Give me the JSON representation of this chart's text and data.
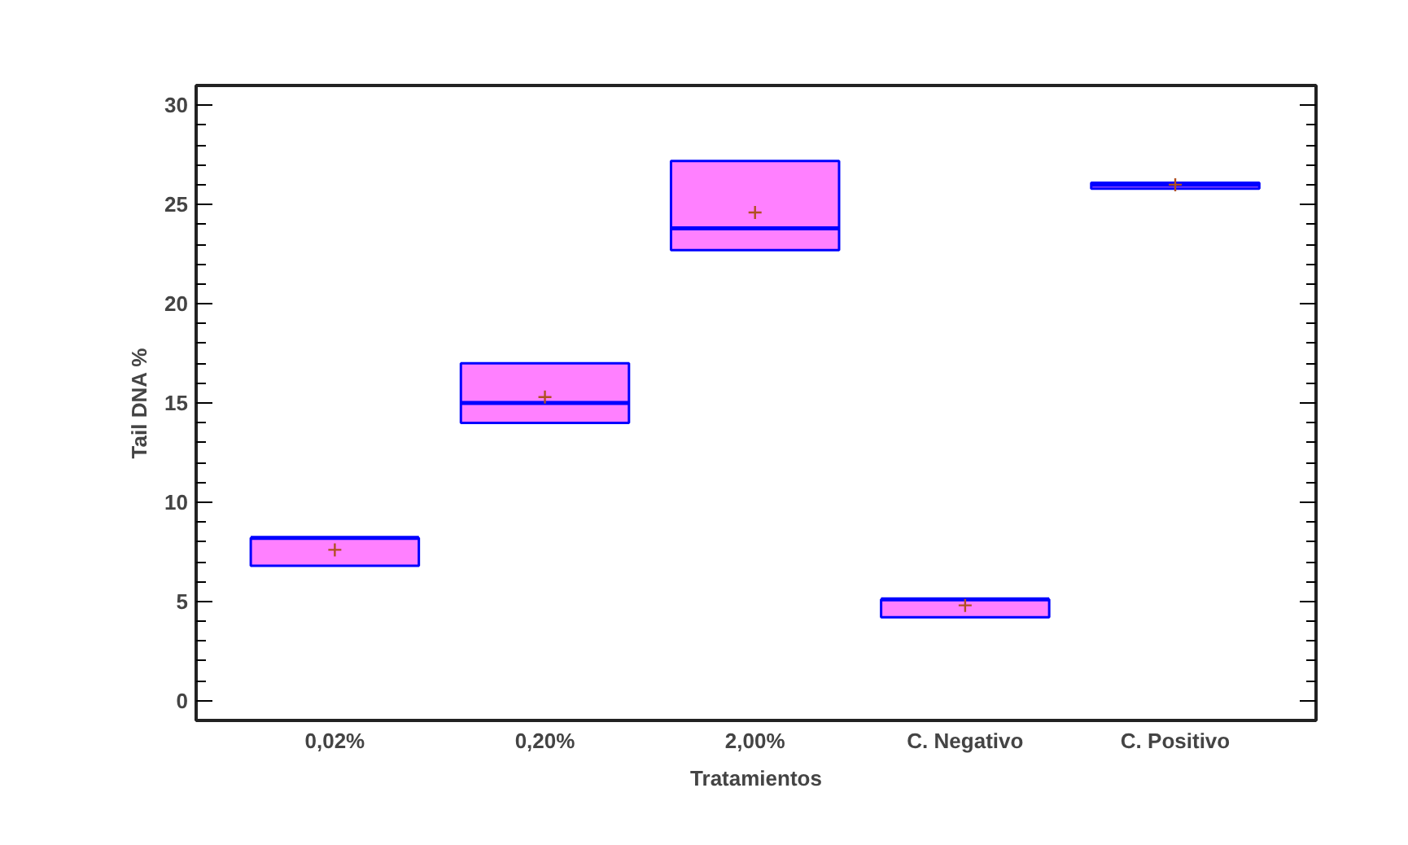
{
  "chart_data": {
    "type": "box",
    "xlabel": "Tratamientos",
    "ylabel": "Tail DNA %",
    "categories": [
      "0,02%",
      "0,20%",
      "2,00%",
      "C. Negativo",
      "C. Positivo"
    ],
    "series": [
      {
        "color": "#ff80ff",
        "boxes": [
          {
            "low": 6.8,
            "q1": 6.8,
            "median": 8.2,
            "q3": 8.2,
            "high": 8.2,
            "mean": 7.6
          },
          {
            "low": 14.0,
            "q1": 14.0,
            "median": 15.0,
            "q3": 17.0,
            "high": 17.0,
            "mean": 15.3
          },
          {
            "low": 22.7,
            "q1": 22.7,
            "median": 23.8,
            "q3": 27.2,
            "high": 27.2,
            "mean": 24.6
          },
          {
            "low": 4.2,
            "q1": 4.2,
            "median": 5.1,
            "q3": 5.1,
            "high": 5.1,
            "mean": 4.8
          },
          {
            "low": 25.8,
            "q1": 25.8,
            "median": 26.0,
            "q3": 26.1,
            "high": 26.1,
            "mean": 26.0
          }
        ]
      }
    ],
    "ylim": [
      -1,
      31
    ],
    "yticks": [
      0,
      5,
      10,
      15,
      20,
      25,
      30
    ],
    "grid": false
  }
}
